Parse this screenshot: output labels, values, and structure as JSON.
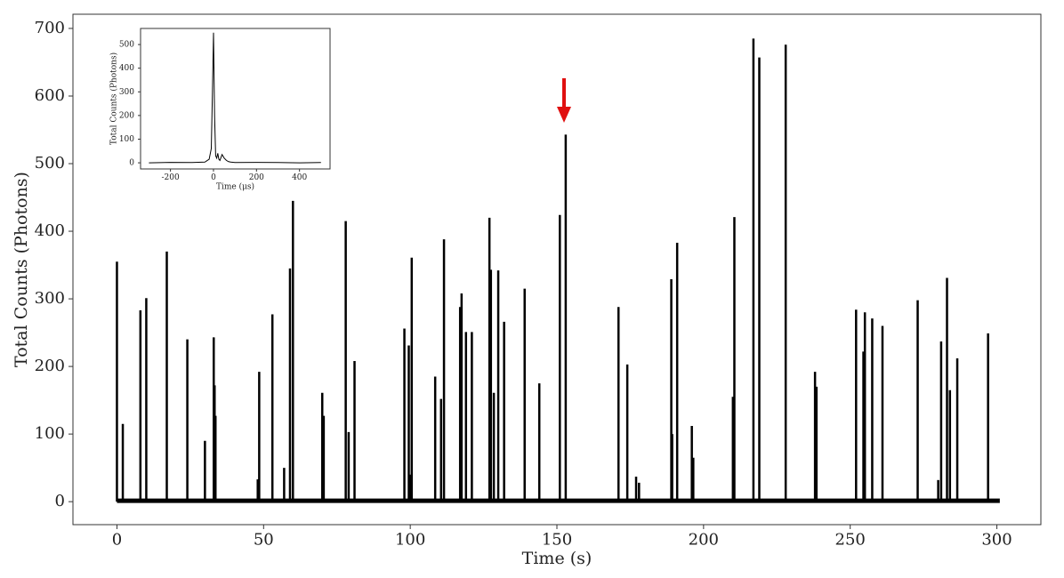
{
  "chart_data": [
    {
      "type": "spike",
      "xlabel": "Time (s)",
      "ylabel": "Total Counts (Photons)",
      "color": "#000000",
      "x": [
        0,
        2,
        8,
        10,
        17,
        24,
        30,
        33,
        33.3,
        33.6,
        48,
        48.5,
        53,
        57,
        59,
        60,
        70,
        70.5,
        78,
        79,
        81,
        98,
        99.5,
        100,
        100.5,
        108.5,
        110.5,
        111.5,
        117,
        117.5,
        119,
        121,
        127,
        127.5,
        128.5,
        130,
        132,
        139,
        144,
        151,
        153,
        171,
        174,
        177,
        178,
        189,
        189.3,
        191,
        196,
        196.5,
        210,
        210.5,
        217,
        219,
        228,
        238,
        238.5,
        252,
        254.5,
        255,
        257.5,
        261,
        273,
        280,
        281,
        283,
        284,
        286.5,
        297
      ],
      "values": [
        355,
        115,
        283,
        301,
        370,
        240,
        90,
        243,
        172,
        127,
        33,
        192,
        277,
        50,
        345,
        445,
        161,
        127,
        415,
        103,
        208,
        256,
        231,
        40,
        361,
        185,
        152,
        388,
        288,
        308,
        251,
        251,
        420,
        343,
        161,
        342,
        266,
        315,
        175,
        424,
        543,
        288,
        203,
        37,
        28,
        329,
        100,
        383,
        112,
        65,
        155,
        421,
        685,
        657,
        676,
        192,
        170,
        284,
        222,
        280,
        271,
        260,
        298,
        32,
        237,
        331,
        165,
        212,
        249
      ],
      "xlim": [
        -15,
        315
      ],
      "ylim": [
        -34,
        721
      ],
      "xticks": [
        0,
        50,
        100,
        150,
        200,
        250,
        300
      ],
      "yticks": [
        0,
        100,
        200,
        300,
        400,
        500,
        600,
        700
      ]
    },
    {
      "type": "line",
      "xlabel": "Time (μs)",
      "ylabel": "Total Counts (Photons)",
      "color": "#000000",
      "x": [
        -300,
        -200,
        -100,
        -40,
        -20,
        -10,
        -5,
        0,
        5,
        10,
        15,
        20,
        25,
        30,
        40,
        50,
        60,
        70,
        80,
        100,
        200,
        300,
        400,
        500
      ],
      "values": [
        0,
        2,
        1,
        3,
        15,
        60,
        300,
        550,
        200,
        30,
        20,
        40,
        15,
        10,
        35,
        20,
        10,
        5,
        3,
        1,
        2,
        1,
        0,
        1
      ],
      "xlim": [
        -339,
        542
      ],
      "ylim": [
        -26,
        568
      ],
      "xticks": [
        -200,
        0,
        200,
        400
      ],
      "yticks": [
        0,
        100,
        200,
        300,
        400,
        500
      ]
    }
  ]
}
